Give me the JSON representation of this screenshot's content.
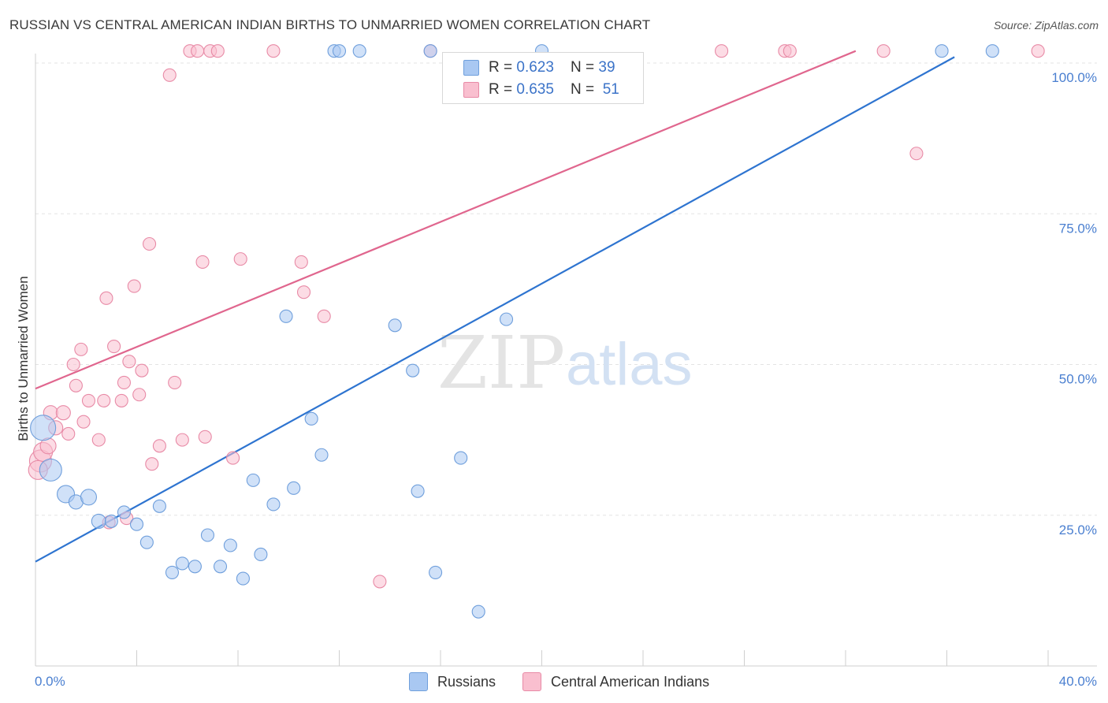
{
  "title": "RUSSIAN VS CENTRAL AMERICAN INDIAN BIRTHS TO UNMARRIED WOMEN CORRELATION CHART",
  "source": "Source: ZipAtlas.com",
  "watermark": {
    "zip": "ZIP",
    "atlas": "atlas"
  },
  "legend": {
    "russians": {
      "r_label": "R = ",
      "r_value": "0.623",
      "n_label": "N = ",
      "n_value": "39",
      "color": "#a9c8f2",
      "border": "#6f9fdc"
    },
    "cai": {
      "r_label": "R = ",
      "r_value": "0.635",
      "n_label": "N = ",
      "n_value": "51",
      "color": "#f9bfcf",
      "border": "#e88aa6"
    }
  },
  "bottom_legend": {
    "russians": "Russians",
    "cai": "Central American Indians"
  },
  "chart_data": {
    "type": "scatter",
    "title": "RUSSIAN VS CENTRAL AMERICAN INDIAN BIRTHS TO UNMARRIED WOMEN CORRELATION CHART",
    "xlabel": "",
    "ylabel": "Births to Unmarried Women",
    "xlim": [
      0,
      40
    ],
    "ylim": [
      0,
      102
    ],
    "x_tick_labels": [
      "0.0%",
      "40.0%"
    ],
    "y_ticks": [
      25,
      50,
      75,
      100
    ],
    "y_tick_labels": [
      "25.0%",
      "50.0%",
      "75.0%",
      "100.0%"
    ],
    "grid": true,
    "legend_position": "top-center",
    "series": [
      {
        "name": "Russians",
        "color": "#6f9fdc",
        "fill": "#a9c8f2",
        "trend_color": "#2e74d0",
        "trend": [
          [
            0,
            17.3
          ],
          [
            36.3,
            101.0
          ]
        ],
        "points": [
          [
            0.3,
            39.5,
            16
          ],
          [
            0.6,
            32.5,
            14
          ],
          [
            1.2,
            28.5,
            11
          ],
          [
            1.6,
            27.2,
            9
          ],
          [
            2.1,
            28.0,
            10
          ],
          [
            2.5,
            24.0,
            9
          ],
          [
            3.0,
            24.0,
            8
          ],
          [
            3.5,
            25.5,
            8
          ],
          [
            4.0,
            23.5,
            8
          ],
          [
            4.4,
            20.5,
            8
          ],
          [
            4.9,
            26.5,
            8
          ],
          [
            5.4,
            15.5,
            8
          ],
          [
            5.8,
            17.0,
            8
          ],
          [
            6.3,
            16.5,
            8
          ],
          [
            6.8,
            21.7,
            8
          ],
          [
            7.3,
            16.5,
            8
          ],
          [
            7.7,
            20.0,
            8
          ],
          [
            8.2,
            14.5,
            8
          ],
          [
            8.6,
            30.8,
            8
          ],
          [
            8.9,
            18.5,
            8
          ],
          [
            9.4,
            26.8,
            8
          ],
          [
            9.9,
            58.0,
            8
          ],
          [
            10.2,
            29.5,
            8
          ],
          [
            10.9,
            41.0,
            8
          ],
          [
            11.3,
            35.0,
            8
          ],
          [
            11.8,
            102.0,
            8
          ],
          [
            12.0,
            102.0,
            8
          ],
          [
            12.8,
            102.0,
            8
          ],
          [
            14.2,
            56.5,
            8
          ],
          [
            14.9,
            49.0,
            8
          ],
          [
            15.1,
            29.0,
            8
          ],
          [
            15.6,
            102.0,
            8
          ],
          [
            15.8,
            15.5,
            8
          ],
          [
            16.8,
            34.5,
            8
          ],
          [
            17.5,
            9.0,
            8
          ],
          [
            18.6,
            57.5,
            8
          ],
          [
            20.0,
            102.0,
            8
          ],
          [
            35.8,
            102.0,
            8
          ],
          [
            37.8,
            102.0,
            8
          ]
        ]
      },
      {
        "name": "Central American Indians",
        "color": "#e88aa6",
        "fill": "#f9bfcf",
        "trend_color": "#e0668e",
        "trend": [
          [
            0,
            46.0
          ],
          [
            32.4,
            102.0
          ]
        ],
        "points": [
          [
            0.2,
            34.0,
            14
          ],
          [
            0.3,
            35.5,
            12
          ],
          [
            0.5,
            36.5,
            10
          ],
          [
            0.6,
            42.0,
            9
          ],
          [
            0.8,
            39.5,
            9
          ],
          [
            1.1,
            42.0,
            9
          ],
          [
            1.3,
            38.5,
            8
          ],
          [
            1.5,
            50.0,
            8
          ],
          [
            1.6,
            46.5,
            8
          ],
          [
            1.8,
            52.5,
            8
          ],
          [
            2.1,
            44.0,
            8
          ],
          [
            2.5,
            37.5,
            8
          ],
          [
            2.7,
            44.0,
            8
          ],
          [
            2.8,
            61.0,
            8
          ],
          [
            3.1,
            53.0,
            8
          ],
          [
            3.4,
            44.0,
            8
          ],
          [
            3.5,
            47.0,
            8
          ],
          [
            3.7,
            50.5,
            8
          ],
          [
            3.9,
            63.0,
            8
          ],
          [
            4.1,
            45.0,
            8
          ],
          [
            4.2,
            49.0,
            8
          ],
          [
            4.5,
            70.0,
            8
          ],
          [
            4.6,
            33.5,
            8
          ],
          [
            4.9,
            36.5,
            8
          ],
          [
            5.3,
            98.0,
            8
          ],
          [
            5.5,
            47.0,
            8
          ],
          [
            5.8,
            37.5,
            8
          ],
          [
            6.1,
            102.0,
            8
          ],
          [
            6.4,
            102.0,
            8
          ],
          [
            6.6,
            67.0,
            8
          ],
          [
            6.9,
            102.0,
            8
          ],
          [
            7.2,
            102.0,
            8
          ],
          [
            7.8,
            34.5,
            8
          ],
          [
            8.1,
            67.5,
            8
          ],
          [
            9.4,
            102.0,
            8
          ],
          [
            10.5,
            67.0,
            8
          ],
          [
            10.6,
            62.0,
            8
          ],
          [
            11.4,
            58.0,
            8
          ],
          [
            13.6,
            14.0,
            8
          ],
          [
            15.6,
            102.0,
            8
          ],
          [
            27.1,
            102.0,
            8
          ],
          [
            29.6,
            102.0,
            8
          ],
          [
            29.8,
            102.0,
            8
          ],
          [
            33.5,
            102.0,
            8
          ],
          [
            34.8,
            85.0,
            8
          ],
          [
            39.6,
            102.0,
            8
          ],
          [
            0.1,
            32.5,
            12
          ],
          [
            1.9,
            40.5,
            8
          ],
          [
            2.9,
            23.8,
            8
          ],
          [
            3.6,
            24.5,
            8
          ],
          [
            6.7,
            38.0,
            8
          ]
        ]
      }
    ]
  }
}
